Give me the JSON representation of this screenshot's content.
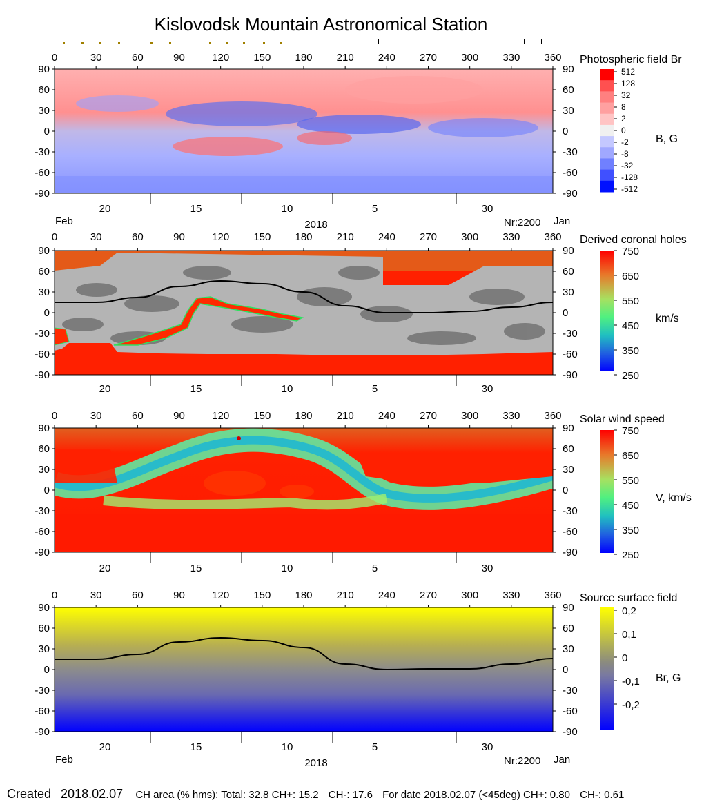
{
  "title": "Kislovodsk Mountain Astronomical Station",
  "footer": {
    "created_label": "Created",
    "created_date": "2018.02.07",
    "ch_area": "CH area (% hms): Total: 32.8 CH+: 15.2",
    "ch_minus": "CH-: 17.6",
    "for_date": "For date 2018.02.07 (<45deg) CH+: 0.80",
    "ch_minus_45": "CH-: 0.61"
  },
  "chart_data": [
    {
      "type": "heatmap",
      "title": "Photospheric field Br",
      "colorbar_label": "B, G",
      "colorbar_ticks": [
        "512",
        "128",
        "32",
        "8",
        "2",
        "0",
        "-2",
        "-8",
        "-32",
        "-128",
        "-512"
      ],
      "colors": [
        "#ff0000",
        "#ff5050",
        "#ff8080",
        "#ffa0a0",
        "#ffc4c4",
        "#f0f0f0",
        "#c4c8ff",
        "#a0a8ff",
        "#7080ff",
        "#4050ff",
        "#0010ff"
      ],
      "x_ticks": [
        "0",
        "30",
        "60",
        "90",
        "120",
        "150",
        "180",
        "210",
        "240",
        "270",
        "300",
        "330",
        "360"
      ],
      "y_ticks": [
        "90",
        "60",
        "30",
        "0",
        "-30",
        "-60",
        "-90"
      ],
      "date_ticks": [
        "20",
        "15",
        "10",
        "5",
        "30"
      ],
      "month_labels": [
        "Feb",
        "Jan"
      ],
      "year_label": "2018",
      "rotation_label": "Nr:2200",
      "xlim": [
        0,
        360
      ],
      "ylim": [
        -90,
        90
      ]
    },
    {
      "type": "heatmap",
      "title": "Derived coronal holes",
      "colorbar_label": "km/s",
      "colorbar_ticks": [
        "750",
        "650",
        "550",
        "450",
        "350",
        "250"
      ],
      "x_ticks": [
        "0",
        "30",
        "60",
        "90",
        "120",
        "150",
        "180",
        "210",
        "240",
        "270",
        "300",
        "330",
        "360"
      ],
      "y_ticks": [
        "90",
        "60",
        "30",
        "0",
        "-30",
        "-60",
        "-90"
      ],
      "date_ticks": [
        "20",
        "15",
        "10",
        "5",
        "30"
      ],
      "neutral_line": {
        "x": [
          0,
          30,
          60,
          90,
          120,
          150,
          180,
          210,
          240,
          270,
          300,
          330,
          360
        ],
        "y": [
          15,
          15,
          22,
          38,
          46,
          42,
          30,
          10,
          0,
          0,
          2,
          8,
          15
        ]
      },
      "xlim": [
        0,
        360
      ],
      "ylim": [
        -90,
        90
      ]
    },
    {
      "type": "heatmap",
      "title": "Solar wind speed",
      "colorbar_label": "V, km/s",
      "colorbar_ticks": [
        "750",
        "650",
        "550",
        "450",
        "350",
        "250"
      ],
      "x_ticks": [
        "0",
        "30",
        "60",
        "90",
        "120",
        "150",
        "180",
        "210",
        "240",
        "270",
        "300",
        "330",
        "360"
      ],
      "y_ticks": [
        "90",
        "60",
        "30",
        "0",
        "-30",
        "-60",
        "-90"
      ],
      "date_ticks": [
        "20",
        "15",
        "10",
        "5",
        "30"
      ],
      "xlim": [
        0,
        360
      ],
      "ylim": [
        -90,
        90
      ]
    },
    {
      "type": "heatmap",
      "title": "Source surface field",
      "colorbar_label": "Br, G",
      "colorbar_ticks": [
        "0,2",
        "0,1",
        "0",
        "-0,1",
        "-0,2"
      ],
      "x_ticks": [
        "0",
        "30",
        "60",
        "90",
        "120",
        "150",
        "180",
        "210",
        "240",
        "270",
        "300",
        "330",
        "360"
      ],
      "y_ticks": [
        "90",
        "60",
        "30",
        "0",
        "-30",
        "-60",
        "-90"
      ],
      "date_ticks": [
        "20",
        "15",
        "10",
        "5",
        "30"
      ],
      "month_labels": [
        "Feb",
        "Jan"
      ],
      "year_label": "2018",
      "rotation_label": "Nr:2200",
      "neutral_line": {
        "x": [
          0,
          30,
          60,
          90,
          120,
          150,
          180,
          210,
          240,
          270,
          300,
          330,
          360
        ],
        "y": [
          15,
          15,
          22,
          40,
          46,
          42,
          32,
          8,
          0,
          1,
          1,
          8,
          16
        ]
      },
      "xlim": [
        0,
        360
      ],
      "ylim": [
        -90,
        90
      ]
    }
  ]
}
